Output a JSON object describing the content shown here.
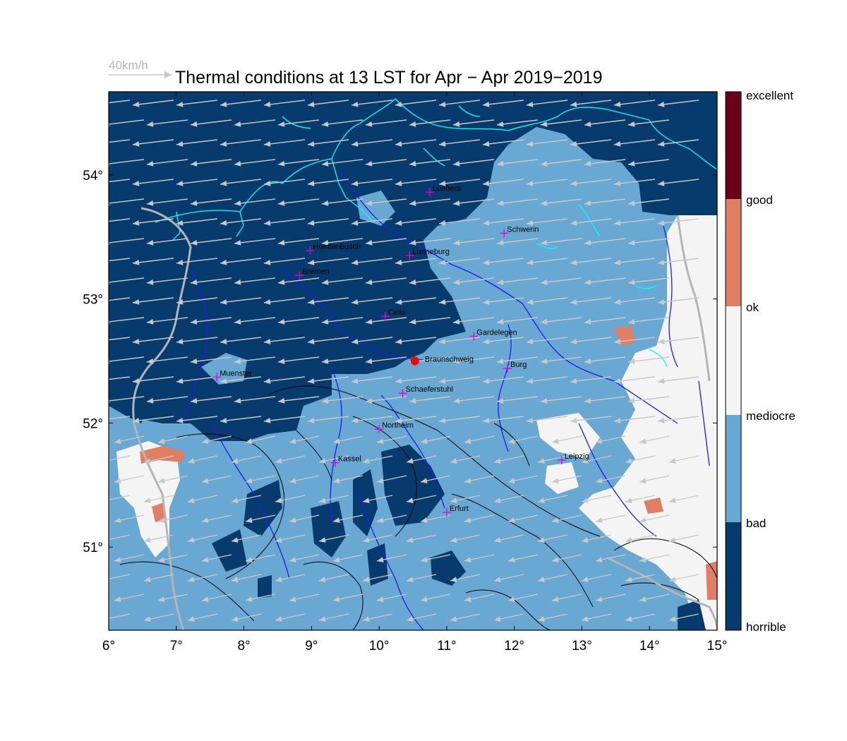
{
  "title": "Thermal conditions at 13 LST for Apr − Apr  2019−2019",
  "wind_scale_label": "40km/h",
  "colors": {
    "horrible": "#083b6d",
    "bad": "#68a8d2",
    "mediocre": "#f4f4f4",
    "ok": "#e07f63",
    "good": "#e07f63",
    "excellent": "#6b0019",
    "river": "#1c1cf0",
    "coast": "#00ffff",
    "border": "#b4b4b4",
    "contour": "#000000",
    "wind": "#c8c8c8",
    "city_marker": "#e000e0",
    "site_marker": "#ff0000"
  },
  "x_axis_ticks": [
    "6°",
    "7°",
    "8°",
    "9°",
    "10°",
    "11°",
    "12°",
    "13°",
    "14°",
    "15°"
  ],
  "y_axis_ticks": [
    "54°",
    "53°",
    "52°",
    "51°"
  ],
  "colorbar_labels": [
    "excellent",
    "good",
    "ok",
    "mediocre",
    "bad",
    "horrible"
  ],
  "cities": [
    {
      "name": "Luebeck",
      "lon": 10.75,
      "lat": 53.86
    },
    {
      "name": "Schwerin",
      "lon": 11.85,
      "lat": 53.53
    },
    {
      "name": "Huettenbusch",
      "lon": 8.98,
      "lat": 53.39
    },
    {
      "name": "Lueneburg",
      "lon": 10.45,
      "lat": 53.35
    },
    {
      "name": "Bremen",
      "lon": 8.82,
      "lat": 53.19
    },
    {
      "name": "Celle",
      "lon": 10.09,
      "lat": 52.86
    },
    {
      "name": "Gardelegen",
      "lon": 11.4,
      "lat": 52.7
    },
    {
      "name": "Burg",
      "lon": 11.9,
      "lat": 52.44
    },
    {
      "name": "Muenster",
      "lon": 7.6,
      "lat": 52.37
    },
    {
      "name": "Schaeferstuhl",
      "lon": 10.35,
      "lat": 52.24
    },
    {
      "name": "Northeim",
      "lon": 10.0,
      "lat": 51.95
    },
    {
      "name": "Kassel",
      "lon": 9.35,
      "lat": 51.68
    },
    {
      "name": "Leipzig",
      "lon": 12.7,
      "lat": 51.7
    },
    {
      "name": "Erfurt",
      "lon": 11.0,
      "lat": 51.28
    }
  ],
  "site": {
    "name": "Braunschweig",
    "lon": 10.53,
    "lat": 52.5
  },
  "map_extent": {
    "lon": [
      6,
      15
    ],
    "lat": [
      50.33,
      54.67
    ]
  }
}
